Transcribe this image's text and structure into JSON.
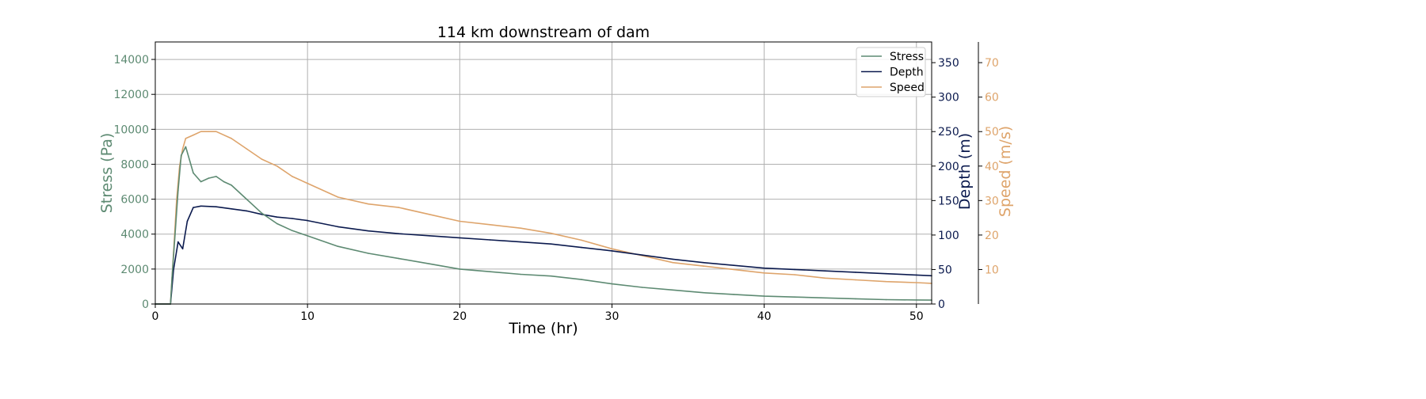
{
  "chart_data": {
    "type": "line",
    "title": "114 km downstream of dam",
    "xlabel": "Time (hr)",
    "xlim": [
      0,
      51
    ],
    "xticks": [
      0,
      10,
      20,
      30,
      40,
      50
    ],
    "grid": true,
    "legend_position": "top-right",
    "axes": {
      "stress": {
        "label": "Stress (Pa)",
        "color": "#5d8a72",
        "ylim": [
          0,
          15000
        ],
        "ticks": [
          0,
          2000,
          4000,
          6000,
          8000,
          10000,
          12000,
          14000
        ]
      },
      "depth": {
        "label": "Depth (m)",
        "color": "#0b1a4e",
        "ylim": [
          0,
          380
        ],
        "ticks": [
          0,
          50,
          100,
          150,
          200,
          250,
          300,
          350
        ]
      },
      "speed": {
        "label": "Speed (m/s)",
        "color": "#dea46b",
        "ylim": [
          0,
          76
        ],
        "ticks": [
          10,
          20,
          30,
          40,
          50,
          60,
          70
        ]
      }
    },
    "series": [
      {
        "name": "Stress",
        "axis": "stress",
        "color": "#5d8a72",
        "x": [
          0,
          1.0,
          1.1,
          1.3,
          1.5,
          1.7,
          2.0,
          2.5,
          3,
          3.5,
          4,
          4.5,
          5,
          6,
          7,
          8,
          9,
          10,
          12,
          14,
          16,
          18,
          20,
          22,
          24,
          26,
          28,
          30,
          32,
          34,
          36,
          38,
          40,
          42,
          44,
          46,
          48,
          50,
          51
        ],
        "y": [
          0,
          0,
          1500,
          4000,
          6500,
          8500,
          9000,
          7500,
          7000,
          7200,
          7300,
          7000,
          6800,
          6000,
          5200,
          4600,
          4200,
          3900,
          3300,
          2900,
          2600,
          2300,
          2000,
          1850,
          1700,
          1600,
          1400,
          1150,
          950,
          800,
          650,
          550,
          450,
          400,
          350,
          300,
          250,
          230,
          220
        ]
      },
      {
        "name": "Depth",
        "axis": "depth",
        "color": "#0b1a4e",
        "x": [
          0,
          1.0,
          1.2,
          1.5,
          1.8,
          2.1,
          2.5,
          3,
          4,
          5,
          6,
          7,
          8,
          9,
          10,
          12,
          14,
          16,
          18,
          20,
          22,
          24,
          26,
          28,
          30,
          32,
          34,
          36,
          38,
          40,
          42,
          44,
          46,
          48,
          50,
          51
        ],
        "y": [
          0,
          0,
          50,
          90,
          80,
          120,
          140,
          142,
          141,
          138,
          135,
          130,
          126,
          124,
          121,
          112,
          106,
          102,
          99,
          96,
          93,
          90,
          87,
          82,
          77,
          71,
          65,
          60,
          56,
          52,
          50,
          48,
          46,
          44,
          42,
          41
        ]
      },
      {
        "name": "Speed",
        "axis": "speed",
        "color": "#dea46b",
        "x": [
          0,
          1.0,
          1.2,
          1.4,
          1.6,
          1.8,
          2.0,
          2.5,
          3,
          3.5,
          4,
          5,
          6,
          7,
          8,
          9,
          10,
          12,
          14,
          16,
          18,
          20,
          22,
          24,
          26,
          28,
          30,
          32,
          34,
          36,
          38,
          40,
          42,
          44,
          46,
          48,
          50,
          51
        ],
        "y": [
          0,
          0,
          15,
          30,
          40,
          45,
          48,
          49,
          50,
          50,
          50,
          48,
          45,
          42,
          40,
          37,
          35,
          31,
          29,
          28,
          26,
          24,
          23,
          22,
          20.5,
          18.5,
          16,
          14,
          12,
          11,
          10,
          9,
          8.5,
          7.5,
          7,
          6.5,
          6.2,
          6
        ]
      }
    ]
  }
}
